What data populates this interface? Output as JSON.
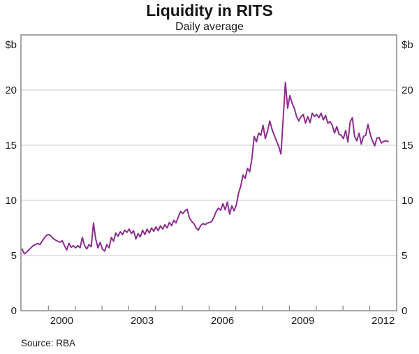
{
  "header": {
    "title": "Liquidity in RITS",
    "subtitle": "Daily average"
  },
  "footer": {
    "source": "Source: RBA"
  },
  "axes": {
    "y_unit_left": "$b",
    "y_unit_right": "$b",
    "y_tick_labels": [
      0,
      5,
      10,
      15,
      20
    ],
    "x_tick_years": [
      2000,
      2001,
      2002,
      2003,
      2004,
      2005,
      2006,
      2007,
      2008,
      2009,
      2010,
      2011,
      2012
    ],
    "x_label_years": [
      2000,
      2003,
      2006,
      2009,
      2012
    ]
  },
  "colors": {
    "line": "#8C2D90",
    "frame": "#808080",
    "grid": "#c9c9c9",
    "text": "#1a1a1a"
  },
  "chart_data": {
    "type": "line",
    "title": "Liquidity in RITS",
    "subtitle": "Daily average",
    "ylabel": "$b",
    "ylim": [
      0,
      25
    ],
    "y_gridlines": [
      5,
      10,
      15,
      20
    ],
    "grid": true,
    "legend": false,
    "x_range": [
      "1999-01",
      "2012-09"
    ],
    "frequency": "monthly",
    "source": "RBA",
    "series": [
      {
        "name": "RITS liquidity (daily average, $b)",
        "start": "1999-01",
        "values": [
          5.6,
          5.15,
          5.3,
          5.5,
          5.7,
          5.9,
          6.0,
          6.1,
          6.0,
          6.3,
          6.6,
          6.85,
          6.9,
          6.75,
          6.55,
          6.4,
          6.3,
          6.2,
          6.35,
          5.9,
          5.5,
          6.1,
          5.75,
          5.9,
          5.7,
          5.9,
          5.7,
          6.65,
          5.9,
          5.6,
          6.0,
          5.8,
          7.95,
          6.5,
          5.7,
          6.2,
          5.6,
          5.4,
          6.0,
          5.7,
          6.65,
          6.3,
          7.05,
          6.75,
          7.15,
          6.9,
          7.3,
          7.1,
          7.4,
          7.0,
          7.25,
          6.5,
          7.0,
          6.7,
          7.3,
          6.9,
          7.4,
          7.05,
          7.5,
          7.2,
          7.6,
          7.25,
          7.7,
          7.4,
          7.8,
          7.5,
          8.0,
          7.7,
          8.2,
          7.95,
          8.5,
          9.0,
          8.8,
          9.05,
          9.2,
          8.4,
          8.1,
          7.9,
          7.5,
          7.3,
          7.7,
          7.9,
          7.8,
          7.95,
          8.0,
          8.1,
          8.5,
          9.0,
          9.3,
          9.1,
          9.7,
          9.15,
          9.85,
          8.75,
          9.5,
          9.05,
          9.6,
          10.65,
          11.3,
          12.3,
          12.0,
          12.9,
          12.6,
          13.8,
          15.8,
          15.3,
          16.1,
          15.9,
          16.8,
          15.6,
          16.3,
          17.2,
          16.45,
          15.9,
          15.4,
          14.9,
          14.2,
          17.4,
          20.7,
          18.35,
          19.5,
          18.8,
          18.35,
          17.6,
          17.2,
          17.6,
          17.8,
          17.0,
          17.6,
          17.05,
          17.9,
          17.6,
          17.8,
          17.5,
          17.9,
          17.3,
          17.7,
          17.0,
          17.15,
          16.8,
          16.1,
          16.7,
          16.0,
          15.9,
          15.6,
          16.35,
          15.3,
          17.1,
          17.5,
          15.8,
          15.4,
          16.1,
          15.1,
          15.8,
          15.9,
          16.9,
          16.0,
          15.4,
          14.95,
          15.65,
          15.7,
          15.2,
          15.35,
          15.4,
          15.35
        ]
      }
    ]
  }
}
